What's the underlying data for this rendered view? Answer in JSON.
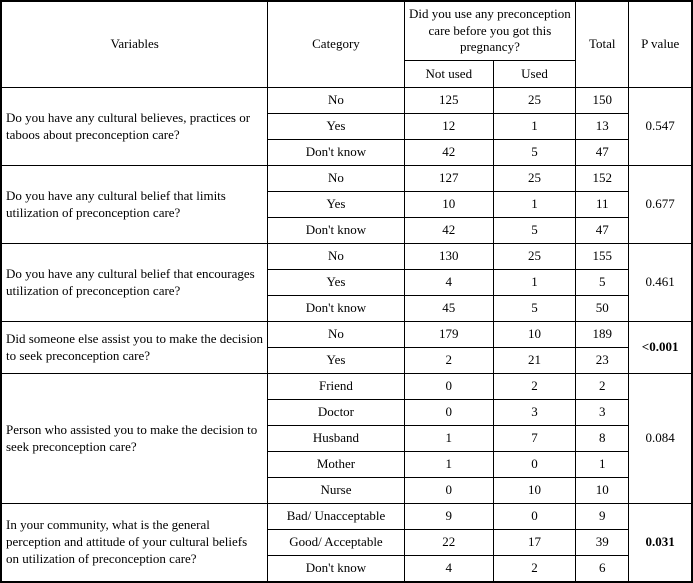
{
  "table": {
    "header": {
      "variables": "Variables",
      "category": "Category",
      "care_question": "Did you use any preconception care before you got this pregnancy?",
      "not_used": "Not used",
      "used": "Used",
      "total": "Total",
      "p_value": "P value"
    },
    "groups": [
      {
        "variable": "Do you have any cultural believes, practices or taboos about preconception care?",
        "rows": [
          {
            "category": "No",
            "not_used": "125",
            "used": "25",
            "total": "150"
          },
          {
            "category": "Yes",
            "not_used": "12",
            "used": "1",
            "total": "13"
          },
          {
            "category": "Don't know",
            "not_used": "42",
            "used": "5",
            "total": "47"
          }
        ],
        "p_value": "0.547",
        "p_bold": false
      },
      {
        "variable": "Do you have any cultural belief that limits utilization of preconception care?",
        "rows": [
          {
            "category": "No",
            "not_used": "127",
            "used": "25",
            "total": "152"
          },
          {
            "category": "Yes",
            "not_used": "10",
            "used": "1",
            "total": "11"
          },
          {
            "category": "Don't know",
            "not_used": "42",
            "used": "5",
            "total": "47"
          }
        ],
        "p_value": "0.677",
        "p_bold": false
      },
      {
        "variable": "Do you have any cultural belief that encourages utilization of preconception care?",
        "rows": [
          {
            "category": "No",
            "not_used": "130",
            "used": "25",
            "total": "155"
          },
          {
            "category": "Yes",
            "not_used": "4",
            "used": "1",
            "total": "5"
          },
          {
            "category": "Don't know",
            "not_used": "45",
            "used": "5",
            "total": "50"
          }
        ],
        "p_value": "0.461",
        "p_bold": false
      },
      {
        "variable": "Did someone else assist you to make the decision to seek preconception care?",
        "rows": [
          {
            "category": "No",
            "not_used": "179",
            "used": "10",
            "total": "189"
          },
          {
            "category": "Yes",
            "not_used": "2",
            "used": "21",
            "total": "23"
          }
        ],
        "p_value": "<0.001",
        "p_bold": true
      },
      {
        "variable": "Person who assisted you to make the decision to seek preconception care?",
        "rows": [
          {
            "category": "Friend",
            "not_used": "0",
            "used": "2",
            "total": "2"
          },
          {
            "category": "Doctor",
            "not_used": "0",
            "used": "3",
            "total": "3"
          },
          {
            "category": "Husband",
            "not_used": "1",
            "used": "7",
            "total": "8"
          },
          {
            "category": "Mother",
            "not_used": "1",
            "used": "0",
            "total": "1"
          },
          {
            "category": "Nurse",
            "not_used": "0",
            "used": "10",
            "total": "10"
          }
        ],
        "p_value": "0.084",
        "p_bold": false
      },
      {
        "variable": "In your community, what is the general perception and attitude of your cultural beliefs on utilization of preconception care?",
        "rows": [
          {
            "category": "Bad/ Unacceptable",
            "not_used": "9",
            "used": "0",
            "total": "9"
          },
          {
            "category": "Good/ Acceptable",
            "not_used": "22",
            "used": "17",
            "total": "39"
          },
          {
            "category": "Don't know",
            "not_used": "4",
            "used": "2",
            "total": "6"
          }
        ],
        "p_value": "0.031",
        "p_bold": true
      }
    ]
  }
}
